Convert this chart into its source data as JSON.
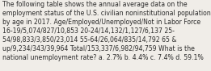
{
  "lines": [
    "The following table shows the annual average data on the",
    "employment status of the U.S. civilian noninstitutional population",
    "by age in 2017. Age/Employed/Unemployed/Not in Labor Force",
    "16-19/5,074/827/10,853 20-24/14,132/1,127/6,137 25-",
    "54/98,833/3,850/23,014 55-64/26,064/835/14,792 65 &",
    "up/9,234/343/39,964 Total/153,337/6,982/94,759 What is the",
    "national unemployment rate? a. 2.7% b. 4.4% c. 7.4% d. 59.1%"
  ],
  "bg_color": "#f0ede8",
  "text_color": "#2a2a2a",
  "font_size": 5.55,
  "fig_width": 2.61,
  "fig_height": 0.88,
  "dpi": 100
}
